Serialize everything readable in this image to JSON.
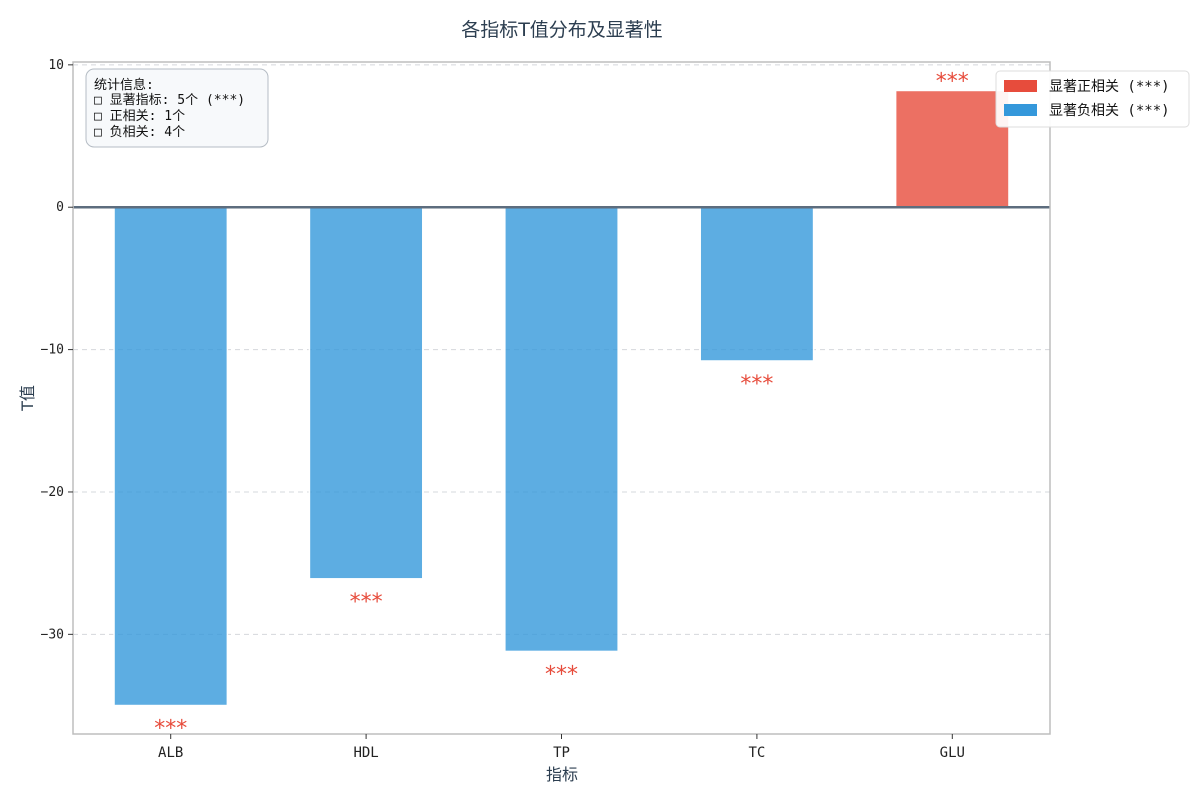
{
  "chart_data": {
    "type": "bar",
    "title": "各指标T值分布及显著性",
    "xlabel": "指标",
    "ylabel": "T值",
    "categories": [
      "ALB",
      "HDL",
      "TP",
      "TC",
      "GLU"
    ],
    "values": [
      -35.0,
      -26.1,
      -31.2,
      -10.8,
      8.2
    ],
    "significance": [
      "***",
      "***",
      "***",
      "***",
      "***"
    ],
    "ylim": [
      -37,
      10.2
    ],
    "yticks": [
      10,
      0,
      -10,
      -20,
      -30
    ],
    "ytick_labels": [
      "10",
      "0",
      "−10",
      "−20",
      "−30"
    ],
    "grid": true,
    "legend_position": "top-right, outside plot",
    "colors": {
      "positive": "#e74c3c",
      "negative": "#3498db",
      "significance_marker": "#e74c3c",
      "zero_line": "#5d6d7e"
    },
    "legend": [
      {
        "label": "显著正相关 (***)",
        "color": "#e74c3c"
      },
      {
        "label": "显著负相关 (***)",
        "color": "#3498db"
      }
    ],
    "stats_box": {
      "title": "统计信息:",
      "lines": [
        "□ 显著指标: 5个 (***)",
        "□ 正相关: 1个",
        "□ 负相关: 4个"
      ]
    }
  }
}
